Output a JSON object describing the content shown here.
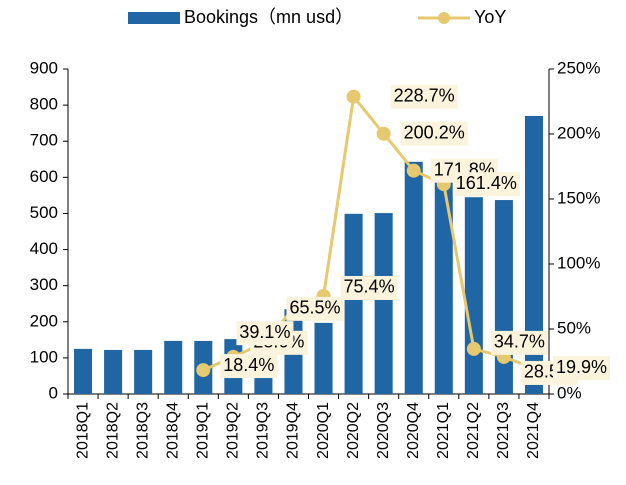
{
  "chart_data": {
    "type": "bar_line",
    "categories": [
      "2018Q1",
      "2018Q2",
      "2018Q3",
      "2018Q4",
      "2019Q1",
      "2019Q2",
      "2019Q3",
      "2019Q4",
      "2020Q1",
      "2020Q2",
      "2020Q3",
      "2020Q4",
      "2021Q1",
      "2021Q2",
      "2021Q3",
      "2021Q4"
    ],
    "series": [
      {
        "name": "Bookings（mn usd）",
        "type": "bar",
        "color": "#2066a4",
        "values": [
          125,
          122,
          122,
          147,
          147,
          152,
          169,
          235,
          197,
          499,
          501,
          643,
          590,
          545,
          537,
          770
        ]
      },
      {
        "name": "YoY",
        "type": "line",
        "axis": "y2",
        "color": "#e6c86e",
        "values": [
          null,
          null,
          null,
          null,
          18.4,
          28.6,
          39.1,
          65.5,
          75.4,
          228.7,
          200.2,
          171.8,
          161.4,
          34.7,
          28.5,
          19.9
        ],
        "value_labels": [
          null,
          null,
          null,
          null,
          "18.4%",
          "28.6%",
          "39.1%",
          "65.5%",
          "75.4%",
          "228.7%",
          "200.2%",
          "171.8%",
          "161.4%",
          "34.7%",
          "28.5%",
          "19.9%"
        ]
      }
    ],
    "ylim": [
      0,
      900
    ],
    "yticks": [
      0,
      100,
      200,
      300,
      400,
      500,
      600,
      700,
      800,
      900
    ],
    "y2lim": [
      0,
      250
    ],
    "y2ticks": [
      {
        "value": 0,
        "label": "0%"
      },
      {
        "value": 50,
        "label": "50%"
      },
      {
        "value": 100,
        "label": "100%"
      },
      {
        "value": 150,
        "label": "150%"
      },
      {
        "value": 200,
        "label": "200%"
      },
      {
        "value": 250,
        "label": "250%"
      }
    ],
    "legend": "top"
  }
}
